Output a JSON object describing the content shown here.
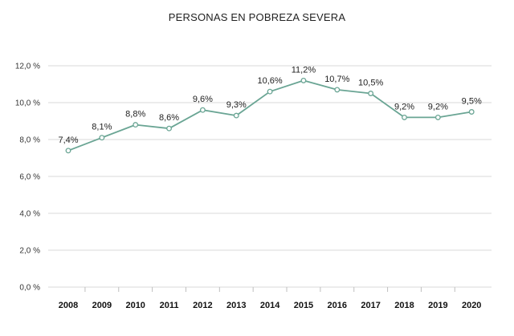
{
  "chart_data": {
    "type": "line",
    "title": "PERSONAS EN POBREZA SEVERA",
    "xlabel": "",
    "ylabel": "",
    "categories": [
      "2008",
      "2009",
      "2010",
      "2011",
      "2012",
      "2013",
      "2014",
      "2015",
      "2016",
      "2017",
      "2018",
      "2019",
      "2020"
    ],
    "series": [
      {
        "name": "Personas en pobreza severa",
        "values": [
          7.4,
          8.1,
          8.8,
          8.6,
          9.6,
          9.3,
          10.6,
          11.2,
          10.7,
          10.5,
          9.2,
          9.2,
          9.5
        ],
        "labels": [
          "7,4%",
          "8,1%",
          "8,8%",
          "8,6%",
          "9,6%",
          "9,3%",
          "10,6%",
          "11,2%",
          "10,7%",
          "10,5%",
          "9,2%",
          "9,2%",
          "9,5%"
        ]
      }
    ],
    "ylim": [
      0,
      12
    ],
    "yticks": [
      "0,0 %",
      "2,0 %",
      "4,0 %",
      "6,0 %",
      "8,0 %",
      "10,0 %",
      "12,0 %"
    ],
    "grid": true,
    "line_color": "#6aa594",
    "marker_fill": "#ffffff",
    "legend": "none"
  }
}
